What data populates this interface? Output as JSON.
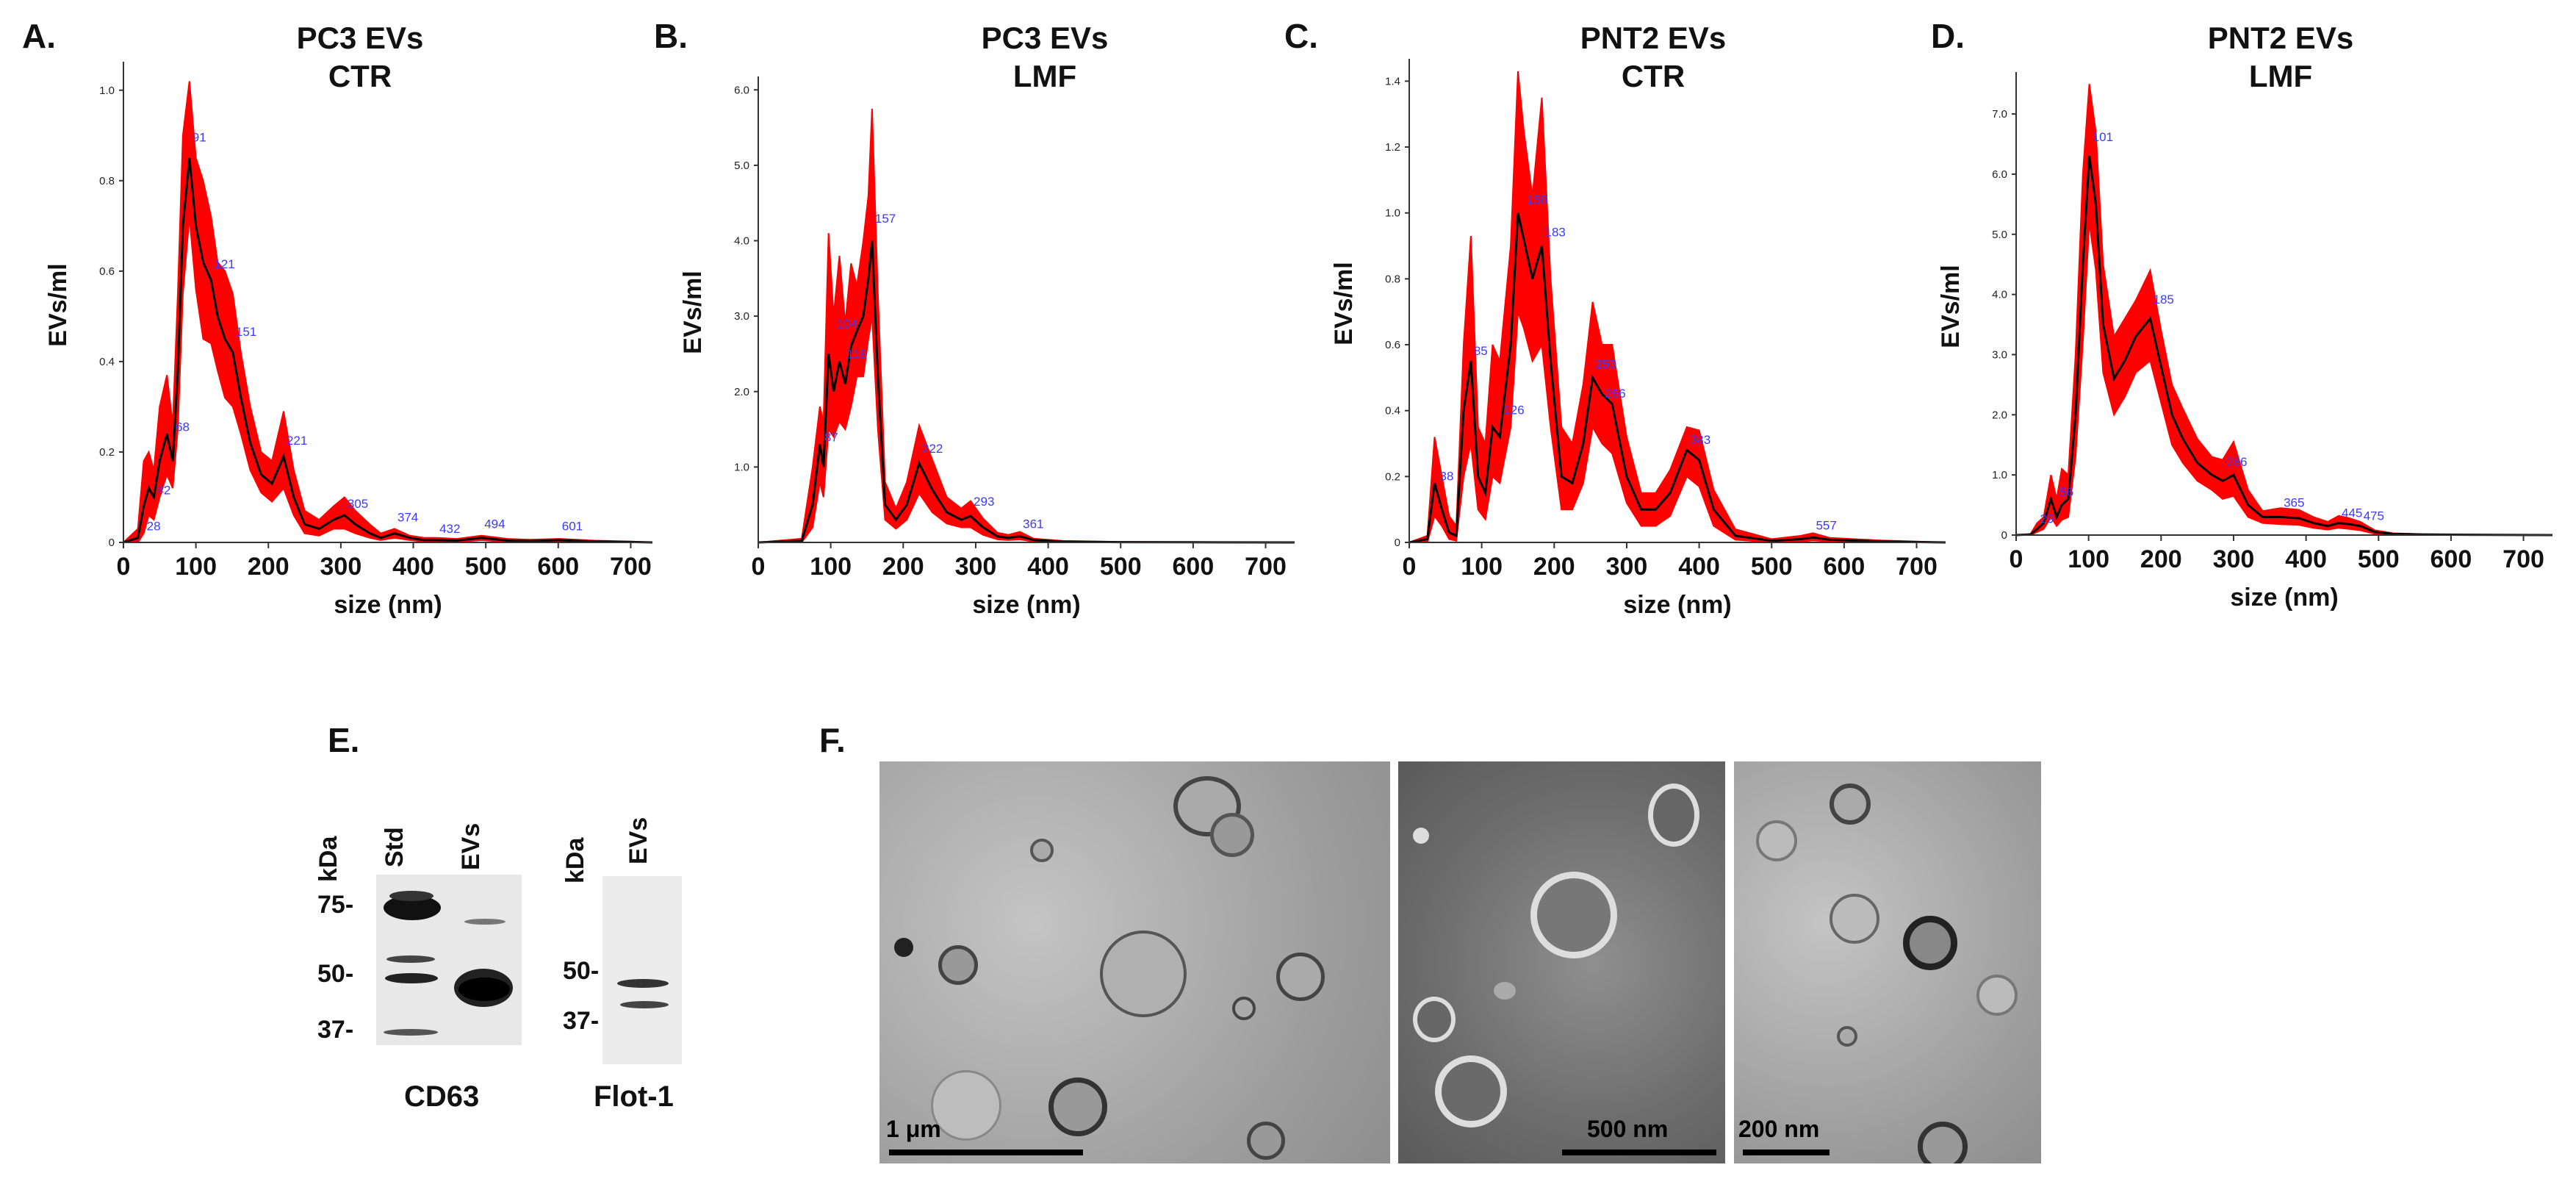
{
  "panels": {
    "A": "A.",
    "B": "B.",
    "C": "C.",
    "D": "D.",
    "E": "E.",
    "F": "F."
  },
  "colors": {
    "band": "#ff0000",
    "line": "#000000",
    "peak_label": "#3a3aff"
  },
  "chart_data": [
    {
      "type": "area",
      "title_line1": "PC3 EVs",
      "title_line2": "CTR",
      "xlabel": "size (nm)",
      "ylabel": "EVs/ml",
      "xlim": [
        0,
        730
      ],
      "ylim": [
        0,
        1.05
      ],
      "x_ticks": [
        0,
        100,
        200,
        300,
        400,
        500,
        600,
        700
      ],
      "y_ticks": [
        "0",
        "0.2",
        "0.4",
        "0.6",
        "0.8",
        "1.0"
      ],
      "y_tick_values": [
        0,
        0.2,
        0.4,
        0.6,
        0.8,
        1.0
      ],
      "series": {
        "x": [
          0,
          20,
          28,
          35,
          42,
          50,
          60,
          68,
          75,
          82,
          91,
          100,
          110,
          121,
          130,
          140,
          151,
          162,
          175,
          190,
          205,
          221,
          235,
          250,
          270,
          290,
          305,
          320,
          340,
          355,
          374,
          395,
          415,
          432,
          460,
          494,
          530,
          560,
          601,
          650,
          700,
          730
        ],
        "mean": [
          0,
          0.01,
          0.08,
          0.12,
          0.1,
          0.18,
          0.24,
          0.18,
          0.38,
          0.7,
          0.85,
          0.7,
          0.62,
          0.58,
          0.5,
          0.45,
          0.42,
          0.32,
          0.22,
          0.15,
          0.13,
          0.19,
          0.1,
          0.04,
          0.03,
          0.05,
          0.06,
          0.04,
          0.02,
          0.01,
          0.02,
          0.01,
          0.005,
          0.005,
          0.004,
          0.01,
          0.004,
          0.003,
          0.005,
          0.002,
          0.001,
          0
        ],
        "upper": [
          0,
          0.03,
          0.18,
          0.2,
          0.16,
          0.3,
          0.37,
          0.26,
          0.55,
          0.9,
          1.02,
          0.85,
          0.8,
          0.72,
          0.62,
          0.6,
          0.55,
          0.42,
          0.3,
          0.2,
          0.18,
          0.29,
          0.16,
          0.07,
          0.05,
          0.08,
          0.1,
          0.07,
          0.04,
          0.02,
          0.03,
          0.015,
          0.01,
          0.01,
          0.008,
          0.015,
          0.008,
          0.006,
          0.008,
          0.004,
          0.002,
          0
        ],
        "lower": [
          0,
          0.0,
          0.02,
          0.06,
          0.05,
          0.1,
          0.15,
          0.12,
          0.25,
          0.55,
          0.72,
          0.56,
          0.45,
          0.44,
          0.38,
          0.32,
          0.3,
          0.24,
          0.16,
          0.11,
          0.09,
          0.12,
          0.06,
          0.02,
          0.015,
          0.03,
          0.03,
          0.02,
          0.01,
          0.005,
          0.01,
          0.005,
          0.002,
          0.002,
          0.001,
          0.005,
          0.001,
          0.001,
          0.002,
          0.001,
          0,
          0
        ]
      },
      "peak_labels": [
        {
          "text": "28",
          "x": 28,
          "y": 0.02
        },
        {
          "text": "42",
          "x": 42,
          "y": 0.1
        },
        {
          "text": "68",
          "x": 68,
          "y": 0.24
        },
        {
          "text": "91",
          "x": 91,
          "y": 0.88
        },
        {
          "text": "121",
          "x": 121,
          "y": 0.6
        },
        {
          "text": "151",
          "x": 151,
          "y": 0.45
        },
        {
          "text": "221",
          "x": 221,
          "y": 0.21
        },
        {
          "text": "305",
          "x": 305,
          "y": 0.07
        },
        {
          "text": "374",
          "x": 374,
          "y": 0.04
        },
        {
          "text": "432",
          "x": 432,
          "y": 0.015
        },
        {
          "text": "494",
          "x": 494,
          "y": 0.025
        },
        {
          "text": "601",
          "x": 601,
          "y": 0.02
        }
      ]
    },
    {
      "type": "area",
      "title_line1": "PC3 EVs",
      "title_line2": "LMF",
      "xlabel": "size (nm)",
      "ylabel": "EVs/ml",
      "xlim": [
        0,
        740
      ],
      "ylim": [
        0,
        6.1
      ],
      "x_ticks": [
        0,
        100,
        200,
        300,
        400,
        500,
        600,
        700
      ],
      "y_ticks": [
        "1.0",
        "2.0",
        "3.0",
        "4.0",
        "5.0",
        "6.0"
      ],
      "y_tick_values": [
        1,
        2,
        3,
        4,
        5,
        6
      ],
      "series": {
        "x": [
          0,
          60,
          75,
          85,
          90,
          97,
          104,
          112,
          120,
          128,
          136,
          145,
          152,
          157,
          165,
          175,
          190,
          205,
          222,
          240,
          260,
          280,
          293,
          310,
          330,
          345,
          361,
          380,
          420,
          500,
          600,
          740
        ],
        "mean": [
          0,
          0.02,
          0.5,
          1.3,
          1.0,
          2.5,
          2.0,
          2.4,
          2.1,
          2.6,
          2.8,
          3.0,
          3.5,
          4.0,
          2.2,
          0.5,
          0.3,
          0.5,
          1.05,
          0.7,
          0.4,
          0.3,
          0.35,
          0.2,
          0.08,
          0.06,
          0.08,
          0.03,
          0.01,
          0.004,
          0.002,
          0
        ],
        "upper": [
          0,
          0.05,
          1.0,
          1.8,
          1.6,
          4.1,
          3.0,
          3.8,
          2.9,
          3.7,
          3.4,
          4.0,
          4.6,
          5.75,
          3.3,
          0.8,
          0.45,
          0.8,
          1.55,
          1.1,
          0.6,
          0.45,
          0.55,
          0.32,
          0.13,
          0.1,
          0.14,
          0.05,
          0.02,
          0.008,
          0.004,
          0
        ],
        "lower": [
          0,
          0.0,
          0.2,
          0.8,
          0.6,
          1.5,
          1.4,
          1.6,
          1.5,
          1.8,
          2.2,
          2.2,
          2.7,
          3.0,
          1.5,
          0.3,
          0.18,
          0.3,
          0.65,
          0.4,
          0.25,
          0.2,
          0.2,
          0.1,
          0.04,
          0.03,
          0.04,
          0.01,
          0.004,
          0.001,
          0,
          0
        ]
      },
      "peak_labels": [
        {
          "text": "87",
          "x": 87,
          "y": 1.3
        },
        {
          "text": "104",
          "x": 104,
          "y": 2.8
        },
        {
          "text": "118",
          "x": 118,
          "y": 2.4
        },
        {
          "text": "157",
          "x": 157,
          "y": 4.2
        },
        {
          "text": "222",
          "x": 222,
          "y": 1.15
        },
        {
          "text": "293",
          "x": 293,
          "y": 0.45
        },
        {
          "text": "361",
          "x": 361,
          "y": 0.15
        }
      ]
    },
    {
      "type": "area",
      "title_line1": "PNT2 EVs",
      "title_line2": "CTR",
      "xlabel": "size (nm)",
      "ylabel": "EVs/ml",
      "xlim": [
        0,
        740
      ],
      "ylim": [
        0,
        1.45
      ],
      "x_ticks": [
        0,
        100,
        200,
        300,
        400,
        500,
        600,
        700
      ],
      "y_ticks": [
        "0",
        "0.2",
        "0.4",
        "0.6",
        "0.8",
        "1.0",
        "1.2",
        "1.4"
      ],
      "y_tick_values": [
        0,
        0.2,
        0.4,
        0.6,
        0.8,
        1.0,
        1.2,
        1.4
      ],
      "series": {
        "x": [
          0,
          25,
          35,
          45,
          55,
          65,
          75,
          85,
          95,
          105,
          115,
          125,
          140,
          150,
          158,
          170,
          183,
          195,
          210,
          225,
          240,
          253,
          266,
          280,
          300,
          320,
          340,
          360,
          383,
          400,
          420,
          450,
          500,
          540,
          557,
          580,
          650,
          740
        ],
        "mean": [
          0,
          0.01,
          0.18,
          0.1,
          0.03,
          0.02,
          0.4,
          0.55,
          0.2,
          0.15,
          0.35,
          0.32,
          0.6,
          1.0,
          0.92,
          0.8,
          0.9,
          0.55,
          0.2,
          0.18,
          0.3,
          0.5,
          0.45,
          0.42,
          0.2,
          0.1,
          0.1,
          0.15,
          0.28,
          0.25,
          0.1,
          0.02,
          0.005,
          0.01,
          0.015,
          0.008,
          0.003,
          0
        ],
        "upper": [
          0,
          0.02,
          0.32,
          0.2,
          0.08,
          0.05,
          0.6,
          0.93,
          0.35,
          0.3,
          0.6,
          0.55,
          0.9,
          1.43,
          1.25,
          1.05,
          1.35,
          0.8,
          0.35,
          0.3,
          0.48,
          0.73,
          0.6,
          0.6,
          0.32,
          0.15,
          0.15,
          0.22,
          0.35,
          0.34,
          0.16,
          0.04,
          0.01,
          0.02,
          0.028,
          0.014,
          0.006,
          0
        ],
        "lower": [
          0,
          0.0,
          0.08,
          0.05,
          0.01,
          0.005,
          0.2,
          0.3,
          0.1,
          0.07,
          0.2,
          0.18,
          0.35,
          0.7,
          0.65,
          0.55,
          0.6,
          0.35,
          0.1,
          0.1,
          0.18,
          0.35,
          0.3,
          0.27,
          0.12,
          0.05,
          0.05,
          0.08,
          0.2,
          0.17,
          0.05,
          0.008,
          0.001,
          0.003,
          0.006,
          0.003,
          0.001,
          0
        ]
      },
      "peak_labels": [
        {
          "text": "38",
          "x": 38,
          "y": 0.18
        },
        {
          "text": "85",
          "x": 85,
          "y": 0.56
        },
        {
          "text": "126",
          "x": 126,
          "y": 0.38
        },
        {
          "text": "158",
          "x": 158,
          "y": 1.02
        },
        {
          "text": "183",
          "x": 183,
          "y": 0.92
        },
        {
          "text": "253",
          "x": 253,
          "y": 0.52
        },
        {
          "text": "266",
          "x": 266,
          "y": 0.43
        },
        {
          "text": "383",
          "x": 383,
          "y": 0.29
        },
        {
          "text": "557",
          "x": 557,
          "y": 0.03
        }
      ]
    },
    {
      "type": "area",
      "title_line1": "PNT2 EVs",
      "title_line2": "LMF",
      "xlabel": "size (nm)",
      "ylabel": "EVs/ml",
      "xlim": [
        0,
        740
      ],
      "ylim": [
        0,
        7.6
      ],
      "x_ticks": [
        0,
        100,
        200,
        300,
        400,
        500,
        600,
        700
      ],
      "y_ticks": [
        "0",
        "1.0",
        "2.0",
        "3.0",
        "4.0",
        "5.0",
        "6.0",
        "7.0"
      ],
      "y_tick_values": [
        0,
        1,
        2,
        3,
        4,
        5,
        6,
        7
      ],
      "series": {
        "x": [
          0,
          20,
          29,
          38,
          48,
          56,
          63,
          72,
          82,
          92,
          101,
          110,
          120,
          135,
          150,
          165,
          185,
          200,
          215,
          230,
          250,
          270,
          285,
          300,
          320,
          340,
          365,
          390,
          410,
          430,
          445,
          460,
          475,
          495,
          520,
          560,
          620,
          740
        ],
        "mean": [
          0,
          0.01,
          0.1,
          0.2,
          0.6,
          0.3,
          0.5,
          0.6,
          2.0,
          4.5,
          6.3,
          5.5,
          3.5,
          2.6,
          2.9,
          3.3,
          3.6,
          2.8,
          2.0,
          1.6,
          1.2,
          1.0,
          0.9,
          1.0,
          0.5,
          0.3,
          0.3,
          0.28,
          0.2,
          0.15,
          0.2,
          0.18,
          0.15,
          0.05,
          0.02,
          0.01,
          0.005,
          0
        ],
        "upper": [
          0,
          0.02,
          0.2,
          0.3,
          1.0,
          0.6,
          1.1,
          1.0,
          3.0,
          6.0,
          7.5,
          6.7,
          4.5,
          3.3,
          3.6,
          3.9,
          4.4,
          3.4,
          2.5,
          2.1,
          1.6,
          1.3,
          1.25,
          1.55,
          0.75,
          0.4,
          0.45,
          0.42,
          0.3,
          0.22,
          0.32,
          0.28,
          0.22,
          0.08,
          0.03,
          0.015,
          0.008,
          0
        ],
        "lower": [
          0,
          0.0,
          0.05,
          0.1,
          0.3,
          0.15,
          0.25,
          0.3,
          1.3,
          3.2,
          5.2,
          4.4,
          2.7,
          2.0,
          2.3,
          2.7,
          2.9,
          2.2,
          1.5,
          1.2,
          0.9,
          0.75,
          0.6,
          0.65,
          0.3,
          0.2,
          0.18,
          0.17,
          0.12,
          0.09,
          0.12,
          0.1,
          0.08,
          0.02,
          0.008,
          0.004,
          0.002,
          0
        ]
      },
      "peak_labels": [
        {
          "text": "29",
          "x": 29,
          "y": 0.15
        },
        {
          "text": "56",
          "x": 56,
          "y": 0.6
        },
        {
          "text": "101",
          "x": 101,
          "y": 6.5
        },
        {
          "text": "185",
          "x": 185,
          "y": 3.8
        },
        {
          "text": "286",
          "x": 286,
          "y": 1.1
        },
        {
          "text": "365",
          "x": 365,
          "y": 0.42
        },
        {
          "text": "445",
          "x": 445,
          "y": 0.25
        },
        {
          "text": "475",
          "x": 475,
          "y": 0.2
        }
      ]
    }
  ],
  "western": {
    "cd63": {
      "kda": "kDa",
      "lane1": "Std",
      "lane2": "EVs",
      "marker75": "75-",
      "marker50": "50-",
      "marker37": "37-",
      "label": "CD63"
    },
    "flot": {
      "kda": "kDa",
      "lane1": "EVs",
      "marker50": "50-",
      "marker37": "37-",
      "label": "Flot-1"
    }
  },
  "em": {
    "scale1": "1 μm",
    "scale2": "500 nm",
    "scale3": "200 nm"
  }
}
